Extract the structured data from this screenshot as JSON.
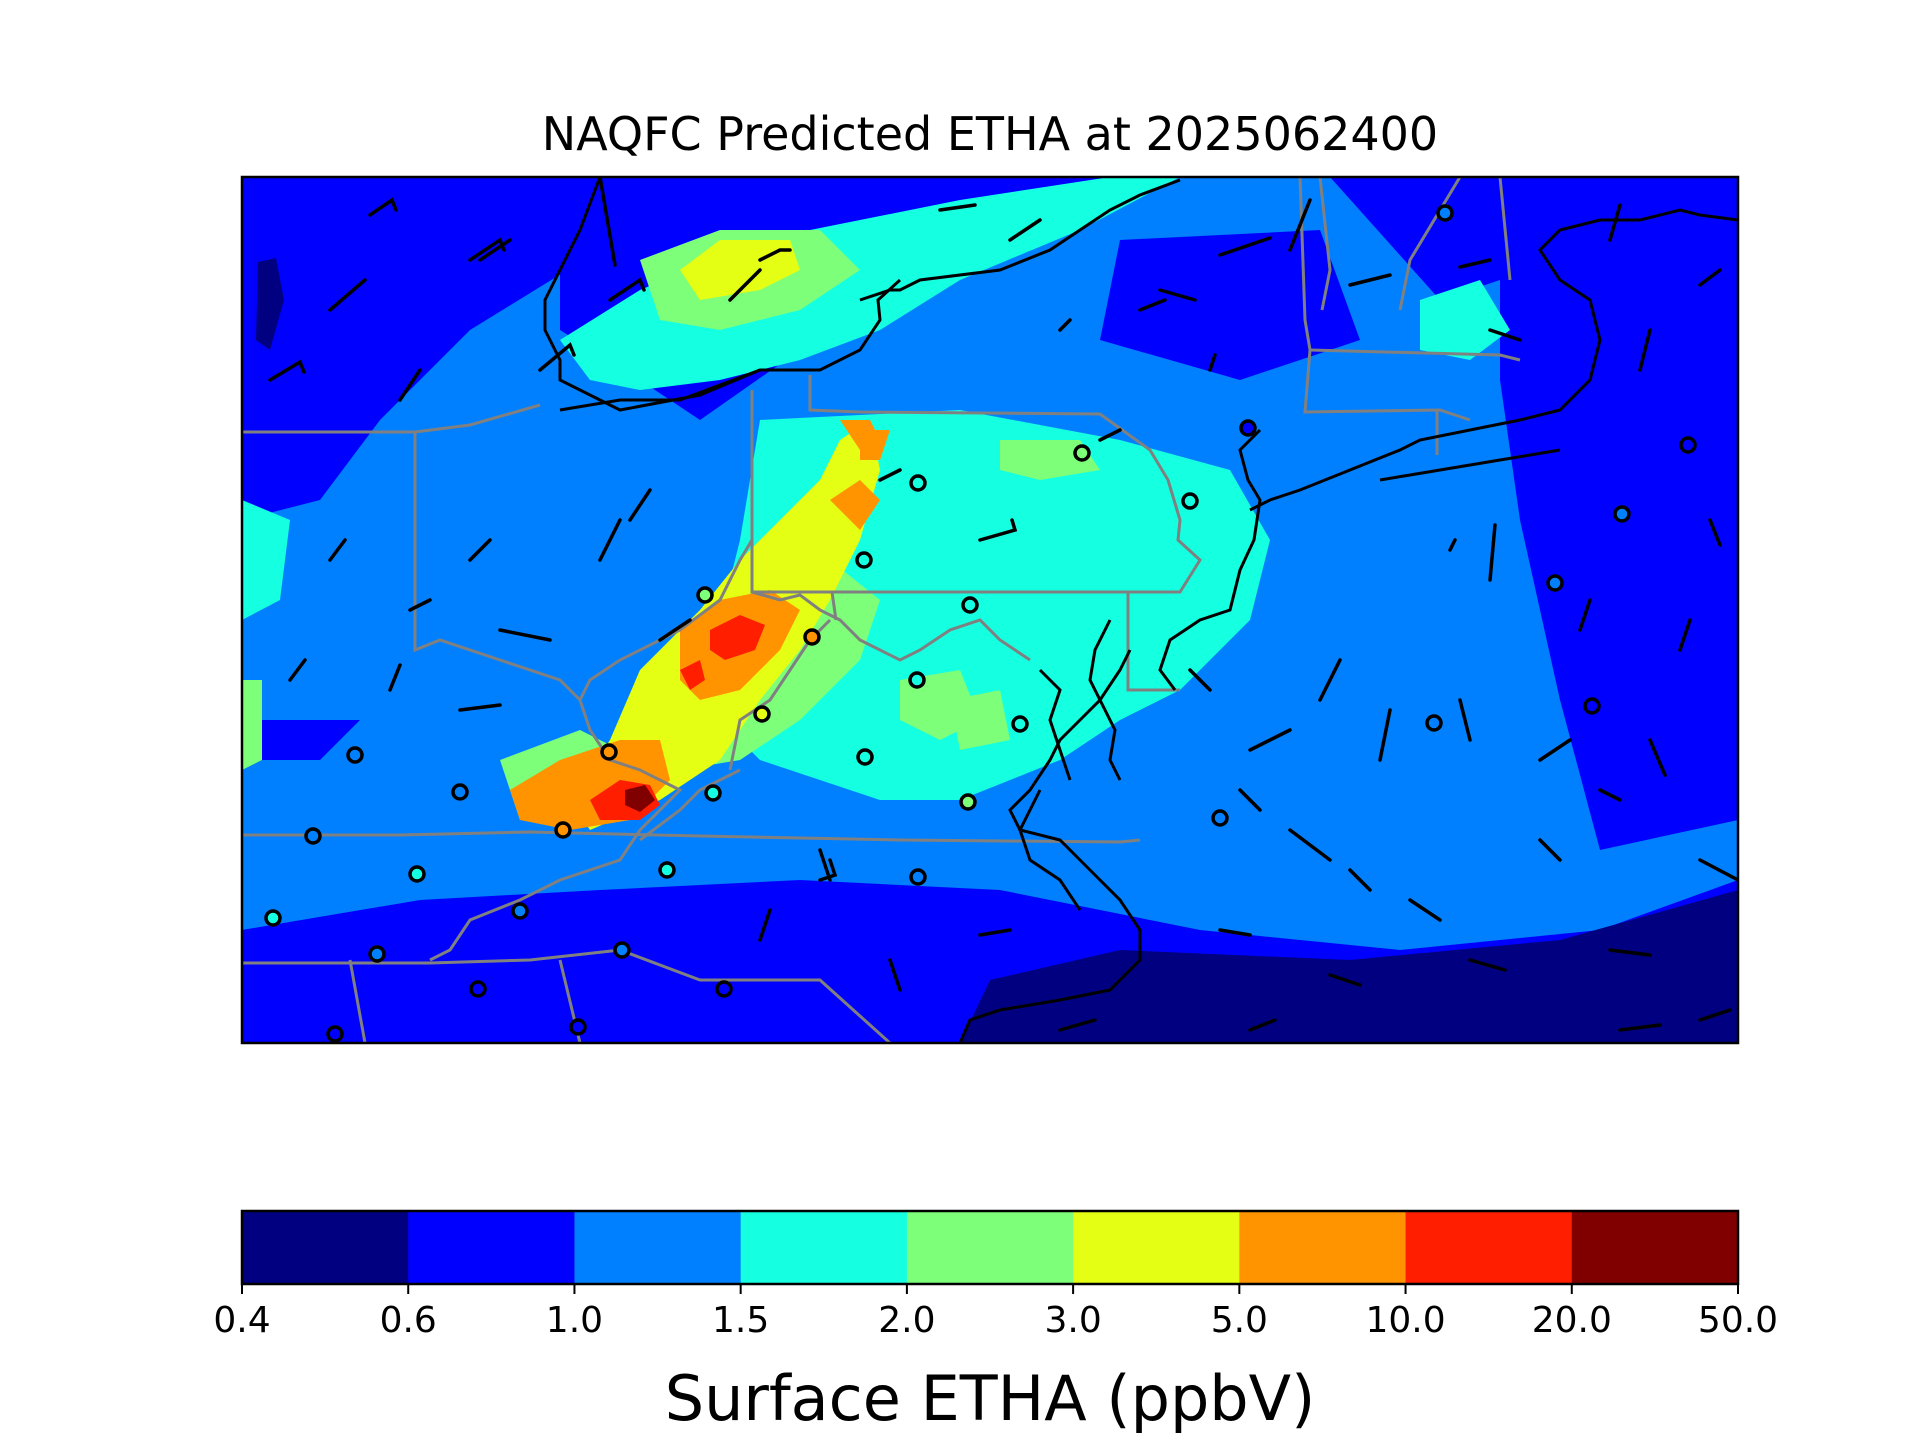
{
  "figure": {
    "title": "NAQFC Predicted ETHA at 2025062400"
  },
  "colorbar": {
    "label": "Surface ETHA (ppbV)",
    "ticks": [
      "0.4",
      "0.6",
      "1.0",
      "1.5",
      "2.0",
      "3.0",
      "5.0",
      "10.0",
      "20.0",
      "50.0"
    ],
    "colors": [
      "#000080",
      "#0000ff",
      "#0080ff",
      "#15ffe1",
      "#7dff7a",
      "#e4ff13",
      "#ff9400",
      "#ff1e00",
      "#800000"
    ]
  },
  "map": {
    "field": "Surface ETHA",
    "units": "ppbV",
    "layers": [
      "concentration-field",
      "state-borders",
      "coastlines",
      "wind-barbs",
      "observation-sites"
    ],
    "colors": {
      "state_borders": "#808080",
      "coastline": "#000000",
      "barbs": "#000000",
      "site_markers": "#000000"
    }
  }
}
